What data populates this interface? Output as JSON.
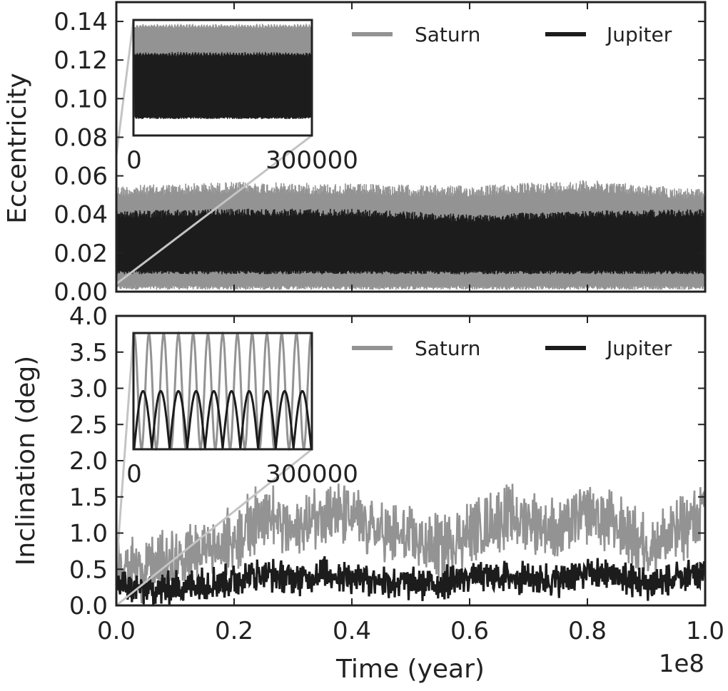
{
  "colors": {
    "saturn": "#939393",
    "jupiter": "#1c1c1c",
    "zoom_line": "#c4c4c4",
    "axes": "#222222",
    "background": "#ffffff"
  },
  "chart_data": [
    {
      "type": "line",
      "ylabel": "Eccentricity",
      "xlim": [
        0,
        100000000
      ],
      "ylim": [
        0,
        0.15
      ],
      "yticks": [
        "0.00",
        "0.02",
        "0.04",
        "0.06",
        "0.08",
        "0.10",
        "0.12",
        "0.14"
      ],
      "ytick_values": [
        0,
        0.02,
        0.04,
        0.06,
        0.08,
        0.1,
        0.12,
        0.14
      ],
      "legend": {
        "placement": "top-right",
        "entries": [
          "Saturn",
          "Jupiter"
        ]
      },
      "grid": false,
      "series": [
        {
          "name": "Saturn",
          "color": "#939393",
          "x": [
            0,
            20000000,
            40000000,
            60000000,
            80000000,
            100000000
          ],
          "min": [
            0.001,
            0.001,
            0.001,
            0.001,
            0.001,
            0.001
          ],
          "max": [
            0.055,
            0.057,
            0.056,
            0.055,
            0.058,
            0.053
          ]
        },
        {
          "name": "Jupiter",
          "color": "#1c1c1c",
          "x": [
            0,
            20000000,
            40000000,
            60000000,
            80000000,
            100000000
          ],
          "min": [
            0.009,
            0.009,
            0.009,
            0.009,
            0.009,
            0.009
          ],
          "max": [
            0.042,
            0.043,
            0.043,
            0.04,
            0.042,
            0.043
          ]
        }
      ],
      "inset": {
        "xlim": [
          0,
          300000
        ],
        "xticks": [
          "0",
          "300000"
        ],
        "series": [
          {
            "name": "Saturn",
            "min": 0.01,
            "max": 0.058
          },
          {
            "name": "Jupiter",
            "min": 0.008,
            "max": 0.043
          }
        ]
      }
    },
    {
      "type": "line",
      "xlabel": "Time (year)",
      "x_offset_label": "1e8",
      "ylabel": "Inclination (deg)",
      "xlim": [
        0,
        1.0
      ],
      "ylim": [
        0,
        4.0
      ],
      "xticks": [
        "0.0",
        "0.2",
        "0.4",
        "0.6",
        "0.8",
        "1.0"
      ],
      "xtick_values": [
        0,
        0.2,
        0.4,
        0.6,
        0.8,
        1.0
      ],
      "yticks": [
        "0.0",
        "0.5",
        "1.0",
        "1.5",
        "2.0",
        "2.5",
        "3.0",
        "3.5",
        "4.0"
      ],
      "ytick_values": [
        0,
        0.5,
        1,
        1.5,
        2,
        2.5,
        3,
        3.5,
        4
      ],
      "legend": {
        "placement": "top-right",
        "entries": [
          "Saturn",
          "Jupiter"
        ]
      },
      "grid": false,
      "series": [
        {
          "name": "Saturn",
          "color": "#939393",
          "x": [
            0,
            0.05,
            0.1,
            0.15,
            0.2,
            0.25,
            0.3,
            0.35,
            0.4,
            0.45,
            0.5,
            0.55,
            0.6,
            0.65,
            0.7,
            0.75,
            0.8,
            0.85,
            0.9,
            0.95,
            1.0
          ],
          "y": [
            0.6,
            0.5,
            0.6,
            0.8,
            0.9,
            1.3,
            1.0,
            1.3,
            1.2,
            1.0,
            0.9,
            0.8,
            1.0,
            1.2,
            1.2,
            1.0,
            1.3,
            1.1,
            0.8,
            1.0,
            1.3
          ]
        },
        {
          "name": "Jupiter",
          "color": "#1c1c1c",
          "x": [
            0,
            0.05,
            0.1,
            0.15,
            0.2,
            0.25,
            0.3,
            0.35,
            0.4,
            0.45,
            0.5,
            0.55,
            0.6,
            0.65,
            0.7,
            0.75,
            0.8,
            0.85,
            0.9,
            0.95,
            1.0
          ],
          "y": [
            0.3,
            0.2,
            0.25,
            0.3,
            0.35,
            0.45,
            0.35,
            0.45,
            0.4,
            0.35,
            0.3,
            0.3,
            0.4,
            0.4,
            0.38,
            0.35,
            0.45,
            0.4,
            0.3,
            0.35,
            0.45
          ]
        }
      ],
      "inset": {
        "xlim": [
          0,
          300000
        ],
        "xticks": [
          "0",
          "300000"
        ],
        "series": [
          {
            "name": "Saturn",
            "min": 0.0,
            "max": 1.0,
            "cycles": 12
          },
          {
            "name": "Jupiter",
            "min": 0.0,
            "max": 0.5,
            "cycles": 10
          }
        ]
      }
    }
  ]
}
